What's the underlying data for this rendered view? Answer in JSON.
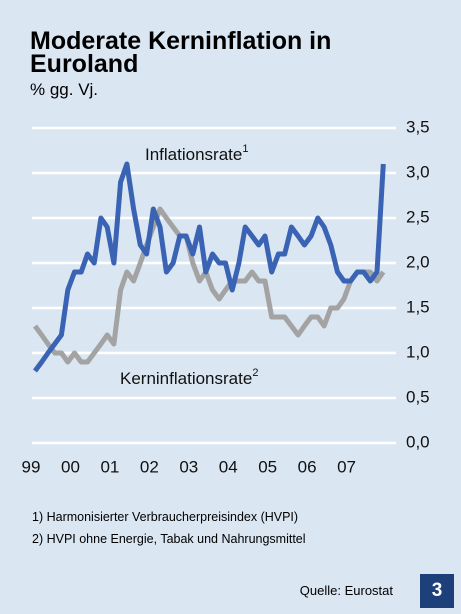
{
  "chart_data": {
    "type": "line",
    "title": "Moderate Kerninflation in Euroland",
    "subtitle": "% gg. Vj.",
    "x": [
      1999.0,
      1999.17,
      1999.33,
      1999.5,
      1999.67,
      1999.83,
      2000.0,
      2000.17,
      2000.33,
      2000.5,
      2000.67,
      2000.83,
      2001.0,
      2001.17,
      2001.33,
      2001.5,
      2001.67,
      2001.83,
      2002.0,
      2002.17,
      2002.33,
      2002.5,
      2002.67,
      2002.83,
      2003.0,
      2003.17,
      2003.33,
      2003.5,
      2003.67,
      2003.83,
      2004.0,
      2004.17,
      2004.33,
      2004.5,
      2004.67,
      2004.83,
      2005.0,
      2005.17,
      2005.33,
      2005.5,
      2005.67,
      2005.83,
      2006.0,
      2006.17,
      2006.33,
      2006.5,
      2006.67,
      2006.83,
      2007.0,
      2007.17,
      2007.33,
      2007.5,
      2007.67,
      2007.83
    ],
    "series": [
      {
        "name": "Inflationsrate",
        "footnote_mark": "1",
        "color": "#3a63b4",
        "values": [
          0.8,
          0.9,
          1.0,
          1.1,
          1.2,
          1.7,
          1.9,
          1.9,
          2.1,
          2.0,
          2.5,
          2.4,
          2.0,
          2.9,
          3.1,
          2.6,
          2.2,
          2.1,
          2.6,
          2.4,
          1.9,
          2.0,
          2.3,
          2.3,
          2.1,
          2.4,
          1.9,
          2.1,
          2.0,
          2.0,
          1.7,
          2.0,
          2.4,
          2.3,
          2.2,
          2.3,
          1.9,
          2.1,
          2.1,
          2.4,
          2.3,
          2.2,
          2.3,
          2.5,
          2.4,
          2.2,
          1.9,
          1.8,
          1.8,
          1.9,
          1.9,
          1.8,
          1.9,
          3.1
        ]
      },
      {
        "name": "Kerninflationsrate",
        "footnote_mark": "2",
        "color": "#a3a3a3",
        "values": [
          1.3,
          1.2,
          1.1,
          1.0,
          1.0,
          0.9,
          1.0,
          0.9,
          0.9,
          1.0,
          1.1,
          1.2,
          1.1,
          1.7,
          1.9,
          1.8,
          2.0,
          2.2,
          2.4,
          2.6,
          2.5,
          2.4,
          2.3,
          2.3,
          2.0,
          1.8,
          1.9,
          1.7,
          1.6,
          1.7,
          1.8,
          1.8,
          1.8,
          1.9,
          1.8,
          1.8,
          1.4,
          1.4,
          1.4,
          1.3,
          1.2,
          1.3,
          1.4,
          1.4,
          1.3,
          1.5,
          1.5,
          1.6,
          1.8,
          1.9,
          1.9,
          1.9,
          1.8,
          1.9
        ]
      }
    ],
    "xlim": [
      1998.67,
      2008.0
    ],
    "xticks": [
      {
        "value": 1999,
        "label": "99"
      },
      {
        "value": 2000,
        "label": "00"
      },
      {
        "value": 2001,
        "label": "01"
      },
      {
        "value": 2002,
        "label": "02"
      },
      {
        "value": 2003,
        "label": "03"
      },
      {
        "value": 2004,
        "label": "04"
      },
      {
        "value": 2005,
        "label": "05"
      },
      {
        "value": 2006,
        "label": "06"
      },
      {
        "value": 2007,
        "label": "07"
      }
    ],
    "ylim": [
      0,
      3.5
    ],
    "yticks": [
      {
        "value": 0,
        "label": "0,0"
      },
      {
        "value": 0.5,
        "label": "0,5"
      },
      {
        "value": 1,
        "label": "1,0"
      },
      {
        "value": 1.5,
        "label": "1,5"
      },
      {
        "value": 2,
        "label": "2,0"
      },
      {
        "value": 2.5,
        "label": "2,5"
      },
      {
        "value": 3,
        "label": "3,0"
      },
      {
        "value": 3.5,
        "label": "3,5"
      }
    ],
    "grid": true
  },
  "footnotes": [
    "1)  Harmonisierter Verbraucherpreisindex (HVPI)",
    "2)  HVPI ohne Energie, Tabak und Nahrungsmittel"
  ],
  "source": "Quelle: Eurostat",
  "badge": "3"
}
